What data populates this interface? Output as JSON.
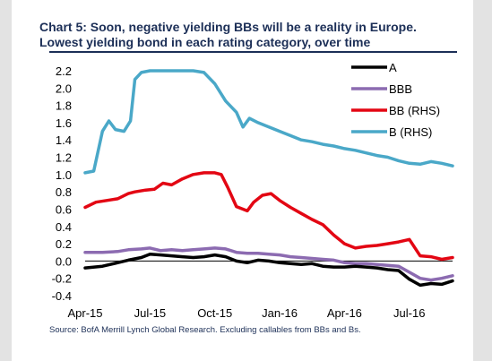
{
  "title": "Chart 5: Soon, negative yielding BBs will be a reality in Europe. Lowest yielding bond in each rating category, over time",
  "source": "Source: BofA Merrill Lynch Global Research. Excluding callables from BBs and Bs.",
  "chart_data": {
    "type": "line",
    "title": "Chart 5: Soon, negative yielding BBs will be a reality in Europe. Lowest yielding bond in each rating category, over time",
    "xlabel": "",
    "ylabel": "",
    "x_ticks": [
      "Apr-15",
      "Jul-15",
      "Oct-15",
      "Jan-16",
      "Apr-16",
      "Jul-16"
    ],
    "x_range": [
      0,
      17
    ],
    "ylim": [
      -0.4,
      2.2
    ],
    "y_ticks": [
      "2.2",
      "2.0",
      "1.8",
      "1.6",
      "1.4",
      "1.2",
      "1.0",
      "0.8",
      "0.6",
      "0.4",
      "0.2",
      "0.0",
      "-0.2",
      "-0.4"
    ],
    "grid": false,
    "legend_position": "top-right",
    "series": [
      {
        "name": "A",
        "color": "#000000",
        "x": [
          0,
          0.8,
          1.5,
          2,
          2.6,
          3,
          3.5,
          4,
          4.5,
          5,
          5.5,
          6,
          6.5,
          7,
          7.5,
          8,
          8.5,
          9,
          9.5,
          10,
          10.5,
          11,
          11.5,
          12,
          12.5,
          13,
          13.5,
          14,
          14.5,
          15,
          15.5,
          16,
          16.5,
          17
        ],
        "values": [
          -0.08,
          -0.06,
          -0.02,
          0.01,
          0.04,
          0.08,
          0.07,
          0.06,
          0.05,
          0.04,
          0.05,
          0.07,
          0.05,
          0.0,
          -0.02,
          0.01,
          0.0,
          -0.02,
          -0.03,
          -0.04,
          -0.03,
          -0.06,
          -0.07,
          -0.07,
          -0.06,
          -0.07,
          -0.08,
          -0.1,
          -0.11,
          -0.21,
          -0.28,
          -0.26,
          -0.27,
          -0.23
        ]
      },
      {
        "name": "BBB",
        "color": "#8c6bb1",
        "x": [
          0,
          0.8,
          1.5,
          2,
          2.6,
          3,
          3.5,
          4,
          4.5,
          5,
          5.5,
          6,
          6.5,
          7,
          7.5,
          8,
          8.5,
          9,
          9.5,
          10,
          10.5,
          11,
          11.5,
          12,
          12.5,
          13,
          13.5,
          14,
          14.5,
          15,
          15.5,
          16,
          16.5,
          17
        ],
        "values": [
          0.1,
          0.1,
          0.11,
          0.13,
          0.14,
          0.15,
          0.12,
          0.13,
          0.12,
          0.13,
          0.14,
          0.15,
          0.14,
          0.1,
          0.09,
          0.09,
          0.08,
          0.07,
          0.05,
          0.04,
          0.03,
          0.02,
          0.01,
          -0.02,
          -0.03,
          -0.03,
          -0.04,
          -0.05,
          -0.06,
          -0.13,
          -0.2,
          -0.22,
          -0.2,
          -0.17
        ]
      },
      {
        "name": "BB (RHS)",
        "color": "#e30613",
        "x": [
          0,
          0.5,
          1,
          1.5,
          2,
          2.3,
          2.8,
          3.2,
          3.6,
          4,
          4.5,
          5,
          5.5,
          6,
          6.3,
          6.6,
          7,
          7.5,
          7.8,
          8.2,
          8.6,
          9,
          9.5,
          10,
          10.5,
          11,
          11.5,
          12,
          12.5,
          13,
          13.5,
          14,
          14.5,
          15,
          15.5,
          16,
          16.5,
          17
        ],
        "values": [
          0.62,
          0.68,
          0.7,
          0.72,
          0.78,
          0.8,
          0.82,
          0.83,
          0.9,
          0.88,
          0.95,
          1.0,
          1.02,
          1.02,
          1.0,
          0.85,
          0.63,
          0.58,
          0.68,
          0.76,
          0.78,
          0.7,
          0.62,
          0.55,
          0.48,
          0.42,
          0.3,
          0.2,
          0.15,
          0.17,
          0.18,
          0.2,
          0.22,
          0.25,
          0.06,
          0.05,
          0.02,
          0.04
        ]
      },
      {
        "name": "B (RHS)",
        "color": "#4aa8c8",
        "x": [
          0,
          0.4,
          0.8,
          1.1,
          1.4,
          1.8,
          2.1,
          2.3,
          2.6,
          3,
          3.5,
          4,
          4.5,
          5,
          5.5,
          6,
          6.5,
          7,
          7.3,
          7.6,
          8,
          8.5,
          9,
          9.5,
          10,
          10.5,
          11,
          11.5,
          12,
          12.5,
          13,
          13.5,
          14,
          14.5,
          15,
          15.5,
          16,
          16.5,
          17
        ],
        "values": [
          1.02,
          1.04,
          1.5,
          1.62,
          1.52,
          1.5,
          1.62,
          2.1,
          2.18,
          2.2,
          2.2,
          2.2,
          2.2,
          2.2,
          2.18,
          2.05,
          1.85,
          1.72,
          1.55,
          1.65,
          1.6,
          1.55,
          1.5,
          1.45,
          1.4,
          1.38,
          1.35,
          1.33,
          1.3,
          1.28,
          1.25,
          1.22,
          1.2,
          1.16,
          1.13,
          1.12,
          1.15,
          1.13,
          1.1
        ]
      }
    ]
  }
}
